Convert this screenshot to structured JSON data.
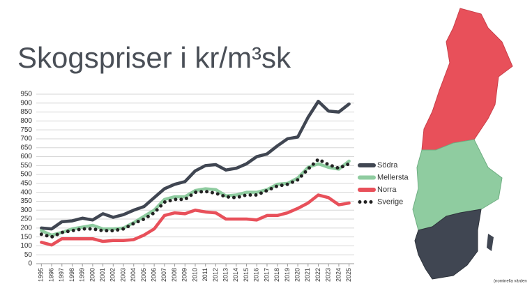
{
  "chart_data": {
    "type": "line",
    "title": "Skogspriser i kr/m³sk",
    "x": [
      1995,
      1996,
      1997,
      1998,
      1999,
      2000,
      2001,
      2002,
      2003,
      2004,
      2005,
      2006,
      2007,
      2008,
      2009,
      2010,
      2011,
      2012,
      2013,
      2014,
      2015,
      2016,
      2017,
      2018,
      2019,
      2020,
      2021,
      2022,
      2023,
      2024,
      2025
    ],
    "xlim": [
      1994.5,
      2025.5
    ],
    "ylim": [
      0,
      950
    ],
    "yticks": [
      0,
      50,
      100,
      150,
      200,
      250,
      300,
      350,
      400,
      450,
      500,
      550,
      600,
      650,
      700,
      750,
      800,
      850,
      900,
      950
    ],
    "grid": true,
    "series": [
      {
        "name": "Södra",
        "color": "#404652",
        "line_style": "solid",
        "values": [
          200,
          195,
          235,
          240,
          255,
          245,
          280,
          260,
          275,
          300,
          320,
          370,
          420,
          445,
          460,
          520,
          550,
          555,
          525,
          535,
          560,
          600,
          615,
          660,
          700,
          710,
          820,
          910,
          855,
          850,
          895
        ]
      },
      {
        "name": "Mellersta",
        "color": "#8fcca0",
        "line_style": "solid",
        "values": [
          185,
          160,
          175,
          195,
          205,
          215,
          195,
          195,
          200,
          230,
          265,
          300,
          360,
          375,
          375,
          410,
          420,
          415,
          380,
          385,
          400,
          400,
          415,
          445,
          450,
          480,
          540,
          560,
          540,
          530,
          575
        ]
      },
      {
        "name": "Norra",
        "color": "#e8505a",
        "line_style": "solid",
        "values": [
          120,
          105,
          140,
          140,
          140,
          140,
          125,
          130,
          130,
          135,
          160,
          195,
          270,
          285,
          280,
          300,
          290,
          285,
          250,
          250,
          250,
          245,
          270,
          270,
          285,
          310,
          340,
          385,
          370,
          330,
          340
        ]
      },
      {
        "name": "Sverige",
        "color": "#222222",
        "line_style": "dotted",
        "values": [
          165,
          150,
          175,
          185,
          195,
          195,
          185,
          185,
          195,
          225,
          250,
          285,
          345,
          360,
          360,
          400,
          405,
          395,
          375,
          370,
          385,
          385,
          410,
          435,
          445,
          470,
          530,
          585,
          555,
          535,
          560
        ]
      }
    ],
    "note": "(nominella värden"
  }
}
